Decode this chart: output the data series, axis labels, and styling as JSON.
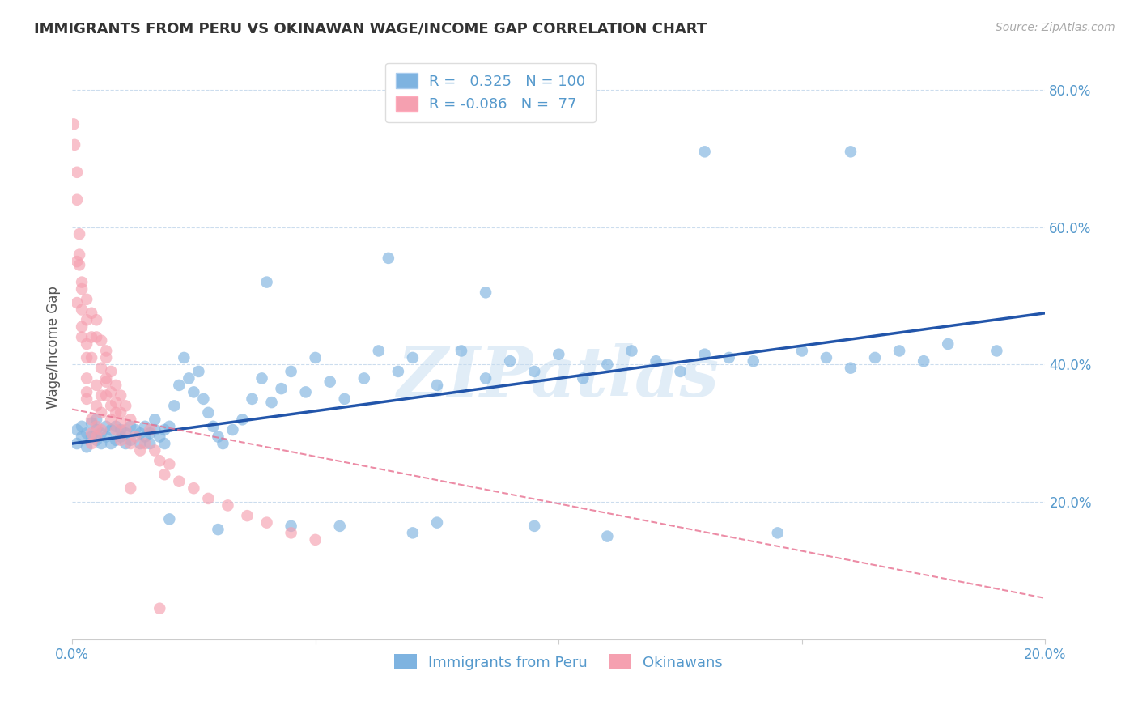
{
  "title": "IMMIGRANTS FROM PERU VS OKINAWAN WAGE/INCOME GAP CORRELATION CHART",
  "source": "Source: ZipAtlas.com",
  "ylabel": "Wage/Income Gap",
  "watermark": "ZIPatlas",
  "legend_blue_r": "0.325",
  "legend_blue_n": "100",
  "legend_pink_r": "-0.086",
  "legend_pink_n": "77",
  "blue_color": "#7EB3E0",
  "pink_color": "#F5A0B0",
  "blue_line_color": "#2255AA",
  "pink_line_color": "#E87090",
  "axis_color": "#5599CC",
  "grid_color": "#CCDDEE",
  "background_color": "#FFFFFF",
  "xlim": [
    0.0,
    0.2
  ],
  "ylim": [
    0.0,
    0.85
  ],
  "blue_line_x": [
    0.0,
    0.2
  ],
  "blue_line_y": [
    0.285,
    0.475
  ],
  "pink_line_x": [
    0.0,
    0.2
  ],
  "pink_line_y": [
    0.335,
    0.06
  ],
  "blue_scatter_x": [
    0.001,
    0.001,
    0.002,
    0.002,
    0.003,
    0.003,
    0.004,
    0.004,
    0.005,
    0.005,
    0.005,
    0.006,
    0.006,
    0.007,
    0.007,
    0.008,
    0.008,
    0.009,
    0.009,
    0.01,
    0.01,
    0.011,
    0.011,
    0.012,
    0.012,
    0.013,
    0.014,
    0.014,
    0.015,
    0.015,
    0.016,
    0.016,
    0.017,
    0.017,
    0.018,
    0.019,
    0.019,
    0.02,
    0.021,
    0.022,
    0.023,
    0.024,
    0.025,
    0.026,
    0.027,
    0.028,
    0.029,
    0.03,
    0.031,
    0.033,
    0.035,
    0.037,
    0.039,
    0.041,
    0.043,
    0.045,
    0.048,
    0.05,
    0.053,
    0.056,
    0.06,
    0.063,
    0.067,
    0.07,
    0.075,
    0.08,
    0.085,
    0.09,
    0.095,
    0.1,
    0.105,
    0.11,
    0.115,
    0.12,
    0.125,
    0.13,
    0.135,
    0.14,
    0.15,
    0.155,
    0.16,
    0.165,
    0.17,
    0.175,
    0.18,
    0.19,
    0.04,
    0.065,
    0.13,
    0.16,
    0.085,
    0.045,
    0.02,
    0.03,
    0.055,
    0.075,
    0.095,
    0.11,
    0.145,
    0.07
  ],
  "blue_scatter_y": [
    0.285,
    0.305,
    0.295,
    0.31,
    0.28,
    0.3,
    0.295,
    0.315,
    0.29,
    0.305,
    0.32,
    0.285,
    0.3,
    0.31,
    0.295,
    0.285,
    0.305,
    0.29,
    0.31,
    0.295,
    0.305,
    0.285,
    0.3,
    0.31,
    0.29,
    0.305,
    0.285,
    0.3,
    0.295,
    0.31,
    0.3,
    0.285,
    0.305,
    0.32,
    0.295,
    0.285,
    0.305,
    0.31,
    0.34,
    0.37,
    0.41,
    0.38,
    0.36,
    0.39,
    0.35,
    0.33,
    0.31,
    0.295,
    0.285,
    0.305,
    0.32,
    0.35,
    0.38,
    0.345,
    0.365,
    0.39,
    0.36,
    0.41,
    0.375,
    0.35,
    0.38,
    0.42,
    0.39,
    0.41,
    0.37,
    0.42,
    0.38,
    0.405,
    0.39,
    0.415,
    0.38,
    0.4,
    0.42,
    0.405,
    0.39,
    0.415,
    0.41,
    0.405,
    0.42,
    0.41,
    0.395,
    0.41,
    0.42,
    0.405,
    0.43,
    0.42,
    0.52,
    0.555,
    0.71,
    0.71,
    0.505,
    0.165,
    0.175,
    0.16,
    0.165,
    0.17,
    0.165,
    0.15,
    0.155,
    0.155
  ],
  "pink_scatter_x": [
    0.0003,
    0.0005,
    0.001,
    0.001,
    0.0015,
    0.0015,
    0.002,
    0.002,
    0.002,
    0.003,
    0.003,
    0.003,
    0.003,
    0.004,
    0.004,
    0.004,
    0.005,
    0.005,
    0.005,
    0.005,
    0.006,
    0.006,
    0.006,
    0.007,
    0.007,
    0.007,
    0.008,
    0.008,
    0.009,
    0.009,
    0.01,
    0.01,
    0.011,
    0.012,
    0.013,
    0.014,
    0.015,
    0.016,
    0.017,
    0.018,
    0.019,
    0.02,
    0.022,
    0.025,
    0.028,
    0.032,
    0.036,
    0.04,
    0.045,
    0.05,
    0.001,
    0.002,
    0.003,
    0.004,
    0.005,
    0.006,
    0.007,
    0.008,
    0.009,
    0.01,
    0.003,
    0.004,
    0.005,
    0.006,
    0.007,
    0.008,
    0.009,
    0.01,
    0.011,
    0.012,
    0.001,
    0.0015,
    0.002,
    0.003,
    0.004,
    0.012,
    0.018
  ],
  "pink_scatter_y": [
    0.75,
    0.72,
    0.68,
    0.64,
    0.59,
    0.56,
    0.52,
    0.48,
    0.44,
    0.41,
    0.38,
    0.36,
    0.35,
    0.32,
    0.3,
    0.285,
    0.37,
    0.34,
    0.31,
    0.295,
    0.355,
    0.33,
    0.305,
    0.42,
    0.38,
    0.355,
    0.34,
    0.32,
    0.33,
    0.305,
    0.315,
    0.29,
    0.305,
    0.285,
    0.295,
    0.275,
    0.285,
    0.305,
    0.275,
    0.26,
    0.24,
    0.255,
    0.23,
    0.22,
    0.205,
    0.195,
    0.18,
    0.17,
    0.155,
    0.145,
    0.49,
    0.455,
    0.43,
    0.41,
    0.44,
    0.395,
    0.375,
    0.36,
    0.345,
    0.33,
    0.465,
    0.44,
    0.465,
    0.435,
    0.41,
    0.39,
    0.37,
    0.355,
    0.34,
    0.32,
    0.55,
    0.545,
    0.51,
    0.495,
    0.475,
    0.22,
    0.045
  ]
}
